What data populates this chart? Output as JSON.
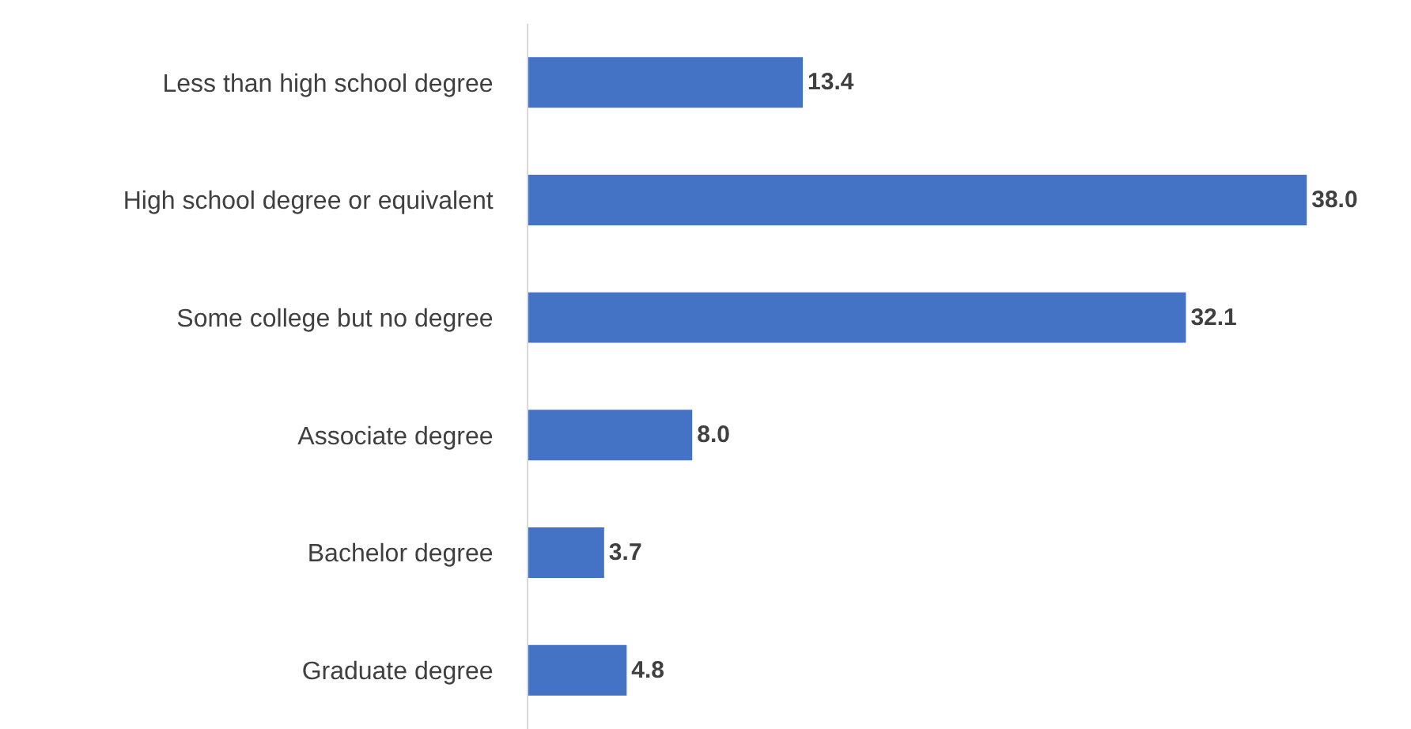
{
  "chart_data": {
    "type": "bar",
    "orientation": "horizontal",
    "categories": [
      "Less than high school degree",
      "High school degree or equivalent",
      "Some college but no degree",
      "Associate degree",
      "Bachelor degree",
      "Graduate degree"
    ],
    "values": [
      13.4,
      38.0,
      32.1,
      8.0,
      3.7,
      4.8
    ],
    "value_labels": [
      "13.4",
      "38.0",
      "32.1",
      "8.0",
      "3.7",
      "4.8"
    ],
    "color": "#4472c4",
    "tick_labels": "y"
  }
}
